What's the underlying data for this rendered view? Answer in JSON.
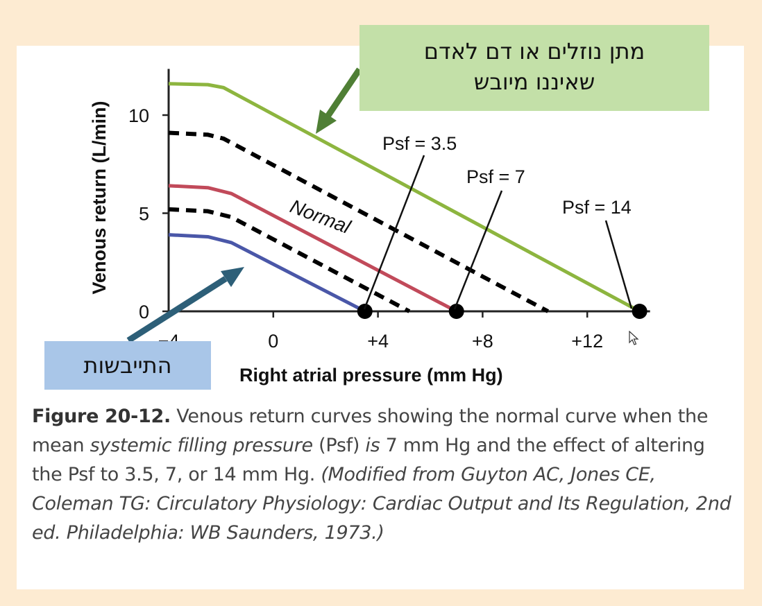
{
  "chart_data": {
    "type": "line",
    "xlabel": "Right atrial pressure (mm Hg)",
    "ylabel": "Venous return (L/min)",
    "xlim": [
      -4,
      14.4
    ],
    "ylim": [
      0,
      12
    ],
    "xticks": [
      {
        "value": -4,
        "label": "−4"
      },
      {
        "value": 0,
        "label": "0"
      },
      {
        "value": 4,
        "label": "+4"
      },
      {
        "value": 8,
        "label": "+8"
      },
      {
        "value": 12,
        "label": "+12"
      }
    ],
    "yticks": [
      {
        "value": 0,
        "label": "0"
      },
      {
        "value": 5,
        "label": "5"
      },
      {
        "value": 10,
        "label": "10"
      }
    ],
    "grid": false,
    "series": [
      {
        "color": "#8db53f",
        "dashed": false,
        "points": [
          [
            -4,
            11.6
          ],
          [
            -2.5,
            11.55
          ],
          [
            -1.9,
            11.4
          ],
          [
            14,
            0
          ]
        ]
      },
      {
        "color": "#000000",
        "dashed": true,
        "points": [
          [
            -4,
            9.1
          ],
          [
            -2.5,
            9.0
          ],
          [
            -1.9,
            8.8
          ],
          [
            10.5,
            0
          ]
        ]
      },
      {
        "color": "#c14a5a",
        "dashed": false,
        "points": [
          [
            -4,
            6.4
          ],
          [
            -2.5,
            6.3
          ],
          [
            -1.6,
            6.0
          ],
          [
            7,
            0
          ]
        ]
      },
      {
        "color": "#000000",
        "dashed": true,
        "points": [
          [
            -4,
            5.2
          ],
          [
            -2.5,
            5.1
          ],
          [
            -1.6,
            4.8
          ],
          [
            5.2,
            0
          ]
        ]
      },
      {
        "color": "#4a57a8",
        "dashed": false,
        "points": [
          [
            -4,
            3.9
          ],
          [
            -2.5,
            3.8
          ],
          [
            -1.6,
            3.5
          ],
          [
            3.5,
            0
          ]
        ]
      }
    ],
    "points": [
      {
        "x": 3.5,
        "y": 0
      },
      {
        "x": 7,
        "y": 0
      },
      {
        "x": 14,
        "y": 0
      }
    ],
    "annotations": [
      {
        "text": "Psf = 3.5",
        "target_x": 3.5
      },
      {
        "text": "Psf = 7",
        "target_x": 7
      },
      {
        "text": "Psf = 14",
        "target_x": 14
      },
      {
        "text": "Normal"
      }
    ]
  },
  "notes": {
    "green_line1": "מתן נוזלים או דם לאדם",
    "green_line2": "שאיננו מיובש",
    "blue": "התייבשות"
  },
  "caption": {
    "fig_num": "Figure 20-12.",
    "t1": " Venous return curves showing the normal curve when the mean ",
    "t2": "systemic filling pressure",
    "t3": " (Psf) ",
    "t4": "is",
    "t5": " 7 mm Hg and the effect of altering the Psf to 3.5, 7, or 14 mm Hg. ",
    "t6": "(Modified from Guyton AC, Jones CE, Coleman TG: Circulatory Physiology: Cardiac Output and Its Regulation, 2nd ed. Philadelphia: WB Saunders, 1973.)"
  },
  "colors": {
    "page_background": "#fdebd2",
    "green_note": "#c3e0a8",
    "blue_note": "#a9c6e8",
    "green_arrow": "#4f7f35",
    "blue_arrow": "#2d5f78"
  }
}
